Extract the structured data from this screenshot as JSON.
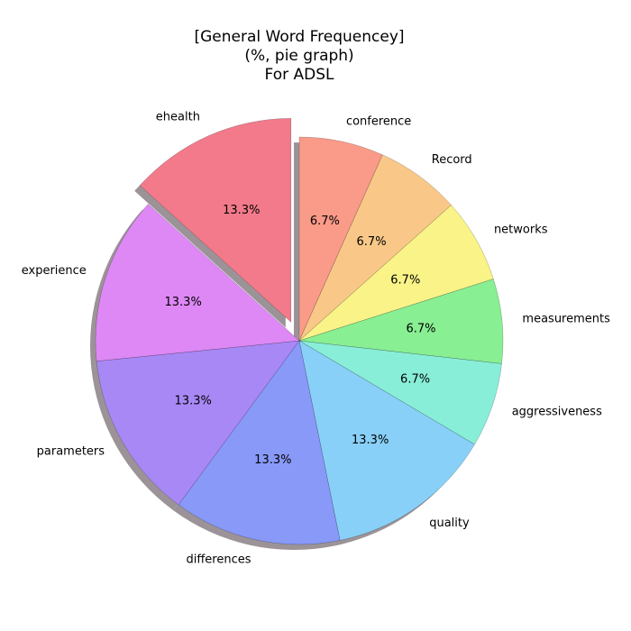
{
  "chart_data": {
    "type": "pie",
    "title_lines": [
      "[General Word Frequencey]",
      "(%, pie graph)",
      "For ADSL"
    ],
    "slices": [
      {
        "label": "conference",
        "value": 6.7,
        "pct_label": "6.7%",
        "color": "#FA9A88"
      },
      {
        "label": "Record",
        "value": 6.7,
        "pct_label": "6.7%",
        "color": "#F9C888"
      },
      {
        "label": "networks",
        "value": 6.7,
        "pct_label": "6.7%",
        "color": "#F9F388"
      },
      {
        "label": "measurements",
        "value": 6.7,
        "pct_label": "6.7%",
        "color": "#88EF93"
      },
      {
        "label": "aggressiveness",
        "value": 6.7,
        "pct_label": "6.7%",
        "color": "#88EED8"
      },
      {
        "label": "quality",
        "value": 13.3,
        "pct_label": "13.3%",
        "color": "#88D0F8"
      },
      {
        "label": "differences",
        "value": 13.3,
        "pct_label": "13.3%",
        "color": "#8899F8"
      },
      {
        "label": "parameters",
        "value": 13.3,
        "pct_label": "13.3%",
        "color": "#A888F5"
      },
      {
        "label": "experience",
        "value": 13.3,
        "pct_label": "13.3%",
        "color": "#DD88F5"
      },
      {
        "label": "ehealth",
        "value": 13.3,
        "pct_label": "13.3%",
        "color": "#F27A8A",
        "exploded": true
      }
    ],
    "shadow": true,
    "shadow_color": "#9B9397",
    "counterclockwise": false
  }
}
